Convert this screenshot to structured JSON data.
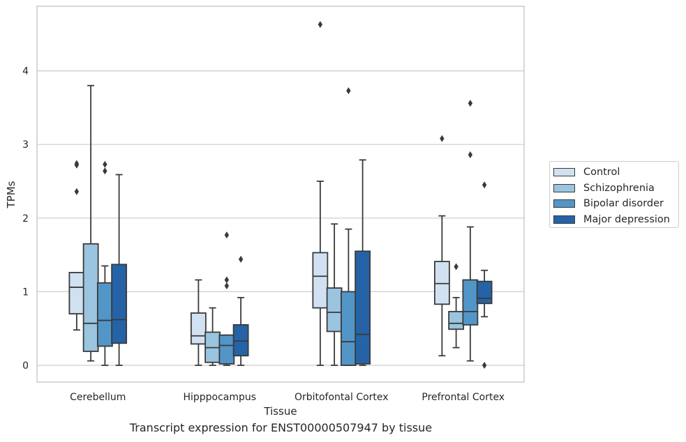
{
  "chart_data": {
    "type": "box",
    "title": "",
    "xlabel": "Tissue",
    "ylabel": "TPMs",
    "caption": "Transcript expression for ENST00000507947 by tissue",
    "categories": [
      "Cerebellum",
      "Hipppocampus",
      "Orbitofontal Cortex",
      "Prefrontal Cortex"
    ],
    "ylim": [
      -0.22,
      4.88
    ],
    "yticks": [
      0,
      1,
      2,
      3,
      4
    ],
    "grid": "horizontal",
    "legend_position": "right",
    "series": [
      {
        "name": "Control",
        "color": "#d1e1f1",
        "boxes": [
          {
            "min": 0.48,
            "q1": 0.7,
            "median": 1.06,
            "q3": 1.26,
            "max": 1.26,
            "outliers": [
              2.72,
              2.74,
              2.36
            ]
          },
          {
            "min": 0.0,
            "q1": 0.29,
            "median": 0.4,
            "q3": 0.71,
            "max": 1.16,
            "outliers": []
          },
          {
            "min": 0.0,
            "q1": 0.78,
            "median": 1.21,
            "q3": 1.53,
            "max": 2.5,
            "outliers": [
              4.63
            ]
          },
          {
            "min": 0.13,
            "q1": 0.83,
            "median": 1.11,
            "q3": 1.41,
            "max": 2.03,
            "outliers": [
              3.08
            ]
          }
        ]
      },
      {
        "name": "Schizophrenia",
        "color": "#9ac4df",
        "boxes": [
          {
            "min": 0.06,
            "q1": 0.19,
            "median": 0.57,
            "q3": 1.65,
            "max": 3.8,
            "outliers": []
          },
          {
            "min": 0.0,
            "q1": 0.04,
            "median": 0.24,
            "q3": 0.45,
            "max": 0.78,
            "outliers": []
          },
          {
            "min": 0.0,
            "q1": 0.46,
            "median": 0.72,
            "q3": 1.05,
            "max": 1.92,
            "outliers": []
          },
          {
            "min": 0.24,
            "q1": 0.49,
            "median": 0.57,
            "q3": 0.73,
            "max": 0.92,
            "outliers": [
              1.34
            ]
          }
        ]
      },
      {
        "name": "Bipolar disorder",
        "color": "#5296c8",
        "boxes": [
          {
            "min": 0.0,
            "q1": 0.26,
            "median": 0.61,
            "q3": 1.12,
            "max": 1.35,
            "outliers": [
              2.73,
              2.64
            ]
          },
          {
            "min": 0.0,
            "q1": 0.02,
            "median": 0.27,
            "q3": 0.41,
            "max": 0.41,
            "outliers": [
              1.77,
              1.16,
              1.08
            ]
          },
          {
            "min": 0.0,
            "q1": 0.0,
            "median": 0.32,
            "q3": 1.0,
            "max": 1.85,
            "outliers": [
              3.73
            ]
          },
          {
            "min": 0.06,
            "q1": 0.55,
            "median": 0.73,
            "q3": 1.16,
            "max": 1.88,
            "outliers": [
              3.56,
              2.86
            ]
          }
        ]
      },
      {
        "name": "Major depression",
        "color": "#2563a6",
        "boxes": [
          {
            "min": 0.0,
            "q1": 0.3,
            "median": 0.62,
            "q3": 1.37,
            "max": 2.59,
            "outliers": []
          },
          {
            "min": 0.0,
            "q1": 0.13,
            "median": 0.33,
            "q3": 0.55,
            "max": 0.92,
            "outliers": [
              1.44
            ]
          },
          {
            "min": 0.0,
            "q1": 0.02,
            "median": 0.42,
            "q3": 1.55,
            "max": 2.79,
            "outliers": []
          },
          {
            "min": 0.66,
            "q1": 0.84,
            "median": 0.91,
            "q3": 1.14,
            "max": 1.29,
            "outliers": [
              2.45,
              0.0
            ]
          }
        ]
      }
    ]
  }
}
